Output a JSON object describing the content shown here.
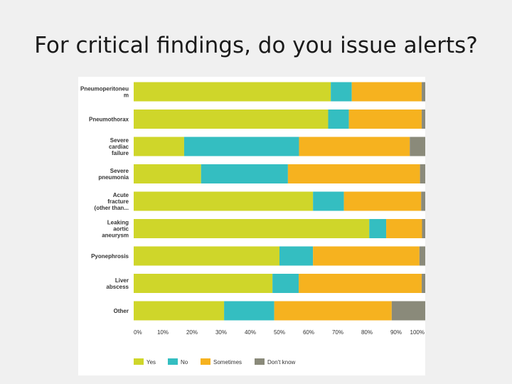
{
  "slide": {
    "title": "For critical findings, do you issue alerts?"
  },
  "chart_data": {
    "type": "bar",
    "orientation": "horizontal",
    "stacked": true,
    "percent_stacked": true,
    "xlim": [
      0,
      100
    ],
    "x_ticks": [
      "0%",
      "10%",
      "20%",
      "30%",
      "40%",
      "50%",
      "60%",
      "70%",
      "80%",
      "90%",
      "100%"
    ],
    "grid": false,
    "legend_position": "bottom",
    "categories": [
      [
        "Pneumoperitoneu",
        "m"
      ],
      [
        "Pneumothorax"
      ],
      [
        "Severe",
        "cardiac",
        "failure"
      ],
      [
        "Severe",
        "pneumonia"
      ],
      [
        "Acute",
        "fracture",
        "(other than..."
      ],
      [
        "Leaking",
        "aortic",
        "aneurysm"
      ],
      [
        "Pyonephrosis"
      ],
      [
        "Liver",
        "abscess"
      ],
      [
        "Other"
      ]
    ],
    "series": [
      {
        "name": "Yes",
        "color": "#cfd62a",
        "values": [
          67.6,
          66.7,
          17.3,
          23.1,
          61.5,
          80.8,
          50.0,
          47.6,
          31.0
        ]
      },
      {
        "name": "No",
        "color": "#34bec1",
        "values": [
          7.2,
          7.1,
          39.4,
          29.8,
          10.6,
          5.8,
          11.5,
          9.0,
          17.2
        ]
      },
      {
        "name": "Sometimes",
        "color": "#f6b21f",
        "values": [
          24.0,
          25.0,
          38.0,
          45.3,
          26.5,
          12.3,
          36.5,
          42.2,
          40.3
        ]
      },
      {
        "name": "Don't know",
        "color": "#8a8a7a",
        "values": [
          1.2,
          1.2,
          5.3,
          1.8,
          1.4,
          1.1,
          2.0,
          1.2,
          11.5
        ]
      }
    ]
  }
}
